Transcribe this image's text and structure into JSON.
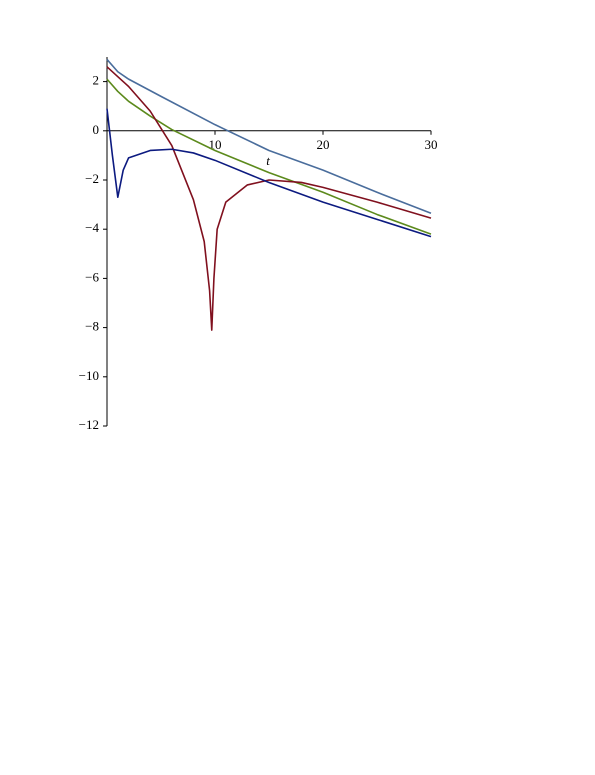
{
  "chart_data": {
    "type": "line",
    "x_label": "t",
    "xlim": [
      0,
      30
    ],
    "ylim": [
      -12,
      3
    ],
    "xticks": [
      10,
      20,
      30
    ],
    "yticks": [
      {
        "value": -12,
        "label": "−12"
      },
      {
        "value": -10,
        "label": "−10"
      },
      {
        "value": -8,
        "label": "−8"
      },
      {
        "value": -6,
        "label": "−6"
      },
      {
        "value": -4,
        "label": "−4"
      },
      {
        "value": -2,
        "label": "−2"
      },
      0,
      2
    ],
    "grid": false,
    "series": [
      {
        "color": "#4a6d9c",
        "x": [
          0,
          1,
          2,
          5,
          10,
          15,
          20,
          25,
          30
        ],
        "values": [
          2.9,
          2.4,
          2.1,
          1.4,
          0.25,
          -0.8,
          -1.6,
          -2.5,
          -3.35
        ]
      },
      {
        "color": "#5c8a1c",
        "x": [
          0,
          1,
          2,
          4,
          6,
          10,
          15,
          20,
          25,
          30
        ],
        "values": [
          2.1,
          1.6,
          1.2,
          0.6,
          0.05,
          -0.8,
          -1.7,
          -2.5,
          -3.4,
          -4.2
        ]
      },
      {
        "color": "#80101e",
        "x": [
          0,
          1,
          2,
          4,
          6,
          8,
          9,
          9.5,
          9.7,
          9.9,
          10.2,
          11,
          13,
          15,
          18,
          20,
          25,
          30
        ],
        "values": [
          2.6,
          2.2,
          1.8,
          0.8,
          -0.6,
          -2.8,
          -4.5,
          -6.5,
          -8.1,
          -6,
          -4,
          -2.9,
          -2.2,
          -2.0,
          -2.1,
          -2.3,
          -2.9,
          -3.55
        ]
      },
      {
        "color": "#0c1a80",
        "x": [
          0,
          0.5,
          1,
          1.5,
          2,
          4,
          6,
          8,
          10,
          15,
          20,
          25,
          30
        ],
        "values": [
          0.9,
          -1,
          -2.7,
          -1.6,
          -1.1,
          -0.8,
          -0.75,
          -0.9,
          -1.2,
          -2.1,
          -2.9,
          -3.6,
          -4.3
        ]
      }
    ]
  }
}
